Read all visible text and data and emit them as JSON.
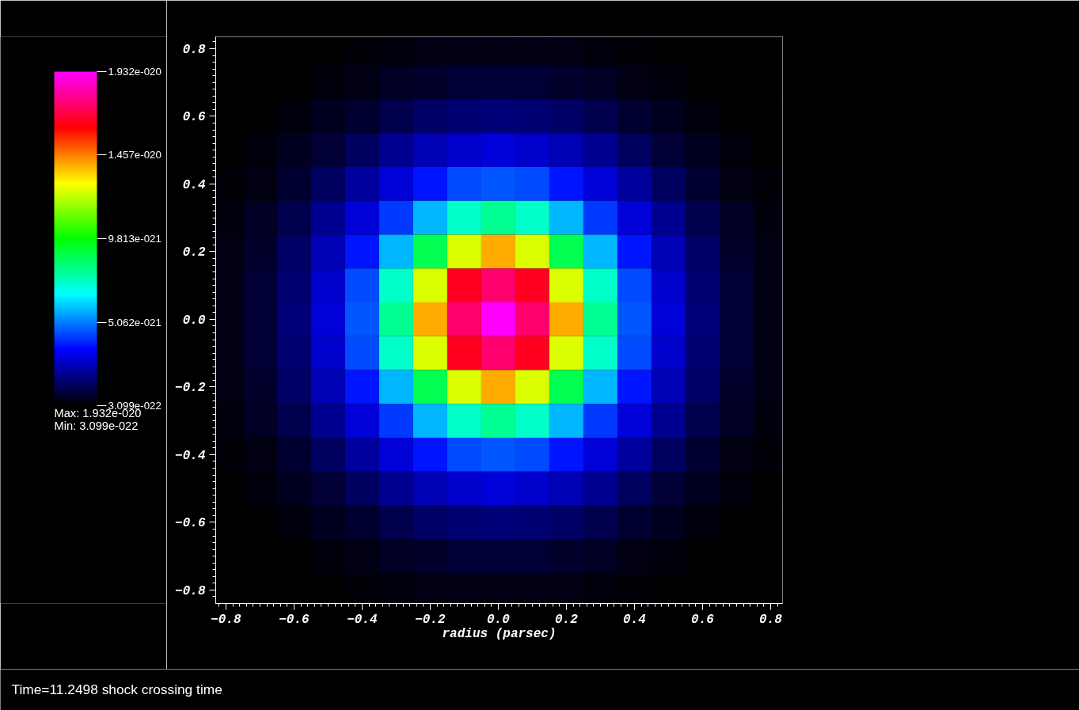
{
  "chart_data": {
    "type": "heatmap",
    "xlabel": "radius (parsec)",
    "x": [
      -0.8,
      -0.7,
      -0.6,
      -0.5,
      -0.4,
      -0.3,
      -0.2,
      -0.1,
      0,
      0.1,
      0.2,
      0.3,
      0.4,
      0.5,
      0.6,
      0.7,
      0.8
    ],
    "y": [
      0.8,
      0.7,
      0.6,
      0.5,
      0.4,
      0.3,
      0.2,
      0.1,
      0,
      -0.1,
      -0.2,
      -0.3,
      -0.4,
      -0.5,
      -0.6,
      -0.7,
      -0.8
    ],
    "cells": [
      [
        3.1e-22,
        3.2e-22,
        3.3e-22,
        3.6e-22,
        4.2e-22,
        5e-22,
        5.5e-22,
        6e-22,
        6e-22,
        6e-22,
        5.5e-22,
        5e-22,
        4.2e-22,
        3.6e-22,
        3.3e-22,
        3.2e-22,
        3.1e-22
      ],
      [
        3.2e-22,
        3.3e-22,
        3.8e-22,
        5e-22,
        6e-22,
        8e-22,
        9e-22,
        1e-21,
        1e-21,
        1e-21,
        9e-22,
        8e-22,
        6e-22,
        5e-22,
        3.8e-22,
        3.3e-22,
        3.2e-22
      ],
      [
        3.3e-22,
        3.8e-22,
        5e-22,
        7e-22,
        9.5e-22,
        1.3e-21,
        1.6e-21,
        1.75e-21,
        1.8e-21,
        1.75e-21,
        1.6e-21,
        1.3e-21,
        9.5e-22,
        7e-22,
        5e-22,
        3.8e-22,
        3.3e-22
      ],
      [
        3.6e-22,
        5e-22,
        7e-22,
        1e-21,
        1.5e-21,
        2.1e-21,
        2.6e-21,
        2.9e-21,
        3e-21,
        2.9e-21,
        2.6e-21,
        2.1e-21,
        1.5e-21,
        1e-21,
        7e-22,
        5e-22,
        3.6e-22
      ],
      [
        4.2e-22,
        6e-22,
        9.5e-22,
        1.5e-21,
        2.3e-21,
        3e-21,
        3.8e-21,
        4.4e-21,
        4.6e-21,
        4.4e-21,
        3.8e-21,
        3e-21,
        2.3e-21,
        1.5e-21,
        9.5e-22,
        6e-22,
        4.2e-22
      ],
      [
        5e-22,
        8e-22,
        1.3e-21,
        2.1e-21,
        3e-21,
        4.2e-21,
        5.8e-21,
        7.3e-21,
        8e-21,
        7.3e-21,
        5.8e-21,
        4.2e-21,
        3e-21,
        2.1e-21,
        1.3e-21,
        8e-22,
        5e-22
      ],
      [
        5.5e-22,
        9e-22,
        1.6e-21,
        2.6e-21,
        3.8e-21,
        5.8e-21,
        8.8e-21,
        1.25e-20,
        1.4e-20,
        1.25e-20,
        8.8e-21,
        5.8e-21,
        3.8e-21,
        2.6e-21,
        1.6e-21,
        9e-22,
        5.5e-22
      ],
      [
        6e-22,
        1e-21,
        1.75e-21,
        2.9e-21,
        4.4e-21,
        7.3e-21,
        1.25e-20,
        1.65e-20,
        1.75e-20,
        1.65e-20,
        1.25e-20,
        7.3e-21,
        4.4e-21,
        2.9e-21,
        1.75e-21,
        1e-21,
        6e-22
      ],
      [
        6e-22,
        1e-21,
        1.8e-21,
        3e-21,
        4.6e-21,
        8e-21,
        1.4e-20,
        1.75e-20,
        1.93e-20,
        1.75e-20,
        1.4e-20,
        8e-21,
        4.6e-21,
        3e-21,
        1.8e-21,
        1e-21,
        6e-22
      ],
      [
        6e-22,
        1e-21,
        1.75e-21,
        2.9e-21,
        4.4e-21,
        7.3e-21,
        1.25e-20,
        1.65e-20,
        1.75e-20,
        1.65e-20,
        1.25e-20,
        7.3e-21,
        4.4e-21,
        2.9e-21,
        1.75e-21,
        1e-21,
        6e-22
      ],
      [
        5.5e-22,
        9e-22,
        1.6e-21,
        2.6e-21,
        3.8e-21,
        5.8e-21,
        8.8e-21,
        1.25e-20,
        1.4e-20,
        1.25e-20,
        8.8e-21,
        5.8e-21,
        3.8e-21,
        2.6e-21,
        1.6e-21,
        9e-22,
        5.5e-22
      ],
      [
        5e-22,
        8e-22,
        1.3e-21,
        2.1e-21,
        3e-21,
        4.2e-21,
        5.8e-21,
        7.3e-21,
        8e-21,
        7.3e-21,
        5.8e-21,
        4.2e-21,
        3e-21,
        2.1e-21,
        1.3e-21,
        8e-22,
        5e-22
      ],
      [
        4.2e-22,
        6e-22,
        9.5e-22,
        1.5e-21,
        2.3e-21,
        3e-21,
        3.8e-21,
        4.4e-21,
        4.6e-21,
        4.4e-21,
        3.8e-21,
        3e-21,
        2.3e-21,
        1.5e-21,
        9.5e-22,
        6e-22,
        4.2e-22
      ],
      [
        3.6e-22,
        5e-22,
        7e-22,
        1e-21,
        1.5e-21,
        2.1e-21,
        2.6e-21,
        2.9e-21,
        3e-21,
        2.9e-21,
        2.6e-21,
        2.1e-21,
        1.5e-21,
        1e-21,
        7e-22,
        5e-22,
        3.6e-22
      ],
      [
        3.3e-22,
        3.8e-22,
        5e-22,
        7e-22,
        9.5e-22,
        1.3e-21,
        1.6e-21,
        1.75e-21,
        1.8e-21,
        1.75e-21,
        1.6e-21,
        1.3e-21,
        9.5e-22,
        7e-22,
        5e-22,
        3.8e-22,
        3.3e-22
      ],
      [
        3.2e-22,
        3.3e-22,
        3.8e-22,
        5e-22,
        6e-22,
        8e-22,
        9e-22,
        1e-21,
        1e-21,
        1e-21,
        9e-22,
        8e-22,
        6e-22,
        5e-22,
        3.8e-22,
        3.3e-22,
        3.2e-22
      ],
      [
        3.1e-22,
        3.2e-22,
        3.3e-22,
        3.6e-22,
        4.2e-22,
        5e-22,
        5.5e-22,
        6e-22,
        6e-22,
        6e-22,
        5.5e-22,
        5e-22,
        4.2e-22,
        3.6e-22,
        3.3e-22,
        3.2e-22,
        3.1e-22
      ]
    ],
    "colors": [
      "#000000",
      "#0000ff",
      "#00ffff",
      "#00ff00",
      "#ffff00",
      "#ff0000",
      "#ff00ff"
    ],
    "clim": [
      3.099e-22,
      1.932e-20
    ],
    "cticks": [
      {
        "value": 3.099e-22,
        "label": "3.099e-022"
      },
      {
        "value": 5.062e-21,
        "label": "5.062e-021"
      },
      {
        "value": 9.813e-21,
        "label": "9.813e-021"
      },
      {
        "value": 1.457e-20,
        "label": "1.457e-020"
      },
      {
        "value": 1.932e-20,
        "label": "1.932e-020"
      }
    ],
    "xlim": [
      -0.83,
      0.835
    ],
    "ylim": [
      -0.84,
      0.835
    ],
    "xticks": [
      -0.8,
      -0.6,
      -0.4,
      -0.2,
      {
        "value": 0,
        "label": "0.0"
      },
      0.2,
      0.4,
      0.6,
      0.8
    ],
    "yticks": [
      -0.8,
      -0.6,
      -0.4,
      -0.2,
      {
        "value": 0,
        "label": "0.0"
      },
      0.2,
      0.4,
      0.6,
      0.8
    ],
    "annotations": [
      "Max:  1.932e-020",
      "Min:  3.099e-022",
      "Time=11.2498 shock crossing time"
    ],
    "grid": false
  }
}
